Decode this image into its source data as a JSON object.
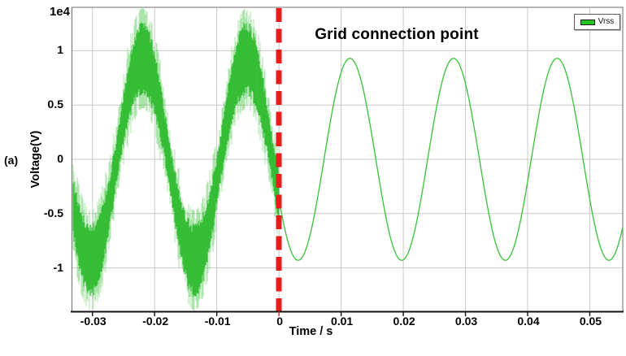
{
  "chart_data": {
    "type": "line",
    "title": "Grid connection point",
    "xlabel": "Time / s",
    "ylabel": "Voltage(V)",
    "y_scale_label": "1e4",
    "panel_label": "(a)",
    "legend": {
      "position": "top-right",
      "entries": [
        {
          "label": "Vrss",
          "color": "#22c322"
        }
      ]
    },
    "grid": true,
    "xlim": [
      -0.0333,
      0.0553
    ],
    "ylim": [
      -1.4,
      1.4
    ],
    "x_ticks": {
      "values": [
        -0.03,
        -0.02,
        -0.01,
        0,
        0.01,
        0.02,
        0.03,
        0.04,
        0.05
      ],
      "labels": [
        "-0.03",
        "-0.02",
        "-0.01",
        "0",
        "0.01",
        "0.02",
        "0.03",
        "0.04",
        "0.05"
      ]
    },
    "y_ticks": {
      "values": [
        1,
        0.5,
        0,
        -0.5,
        -1
      ],
      "labels": [
        "1",
        "0.5",
        "0",
        "-0.5",
        "-1"
      ]
    },
    "series": [
      {
        "name": "Vrss",
        "color": "#2fbf2f",
        "waveform": "sine",
        "amplitude_1e4": 0.93,
        "frequency_hz": 60,
        "phase_rad": 3.55,
        "t_range": [
          -0.0333,
          0.0553
        ]
      }
    ],
    "pre_connection_ripple": {
      "t_range": [
        -0.0333,
        0
      ],
      "band_half_width_1e4_min": 0.13,
      "band_half_width_1e4_max": 0.34,
      "spike_half_width_1e4_max": 0.46,
      "peak_excursion_1e4": 1.33,
      "color": "#28b828"
    },
    "connection_marker": {
      "time": 0,
      "style": "dashed",
      "color": "#e81c1c",
      "line_width": 7
    },
    "colors": {
      "grid_line": "#c9c9c9",
      "plot_border": "#6e6e6e",
      "axis_line": "#111111"
    }
  }
}
